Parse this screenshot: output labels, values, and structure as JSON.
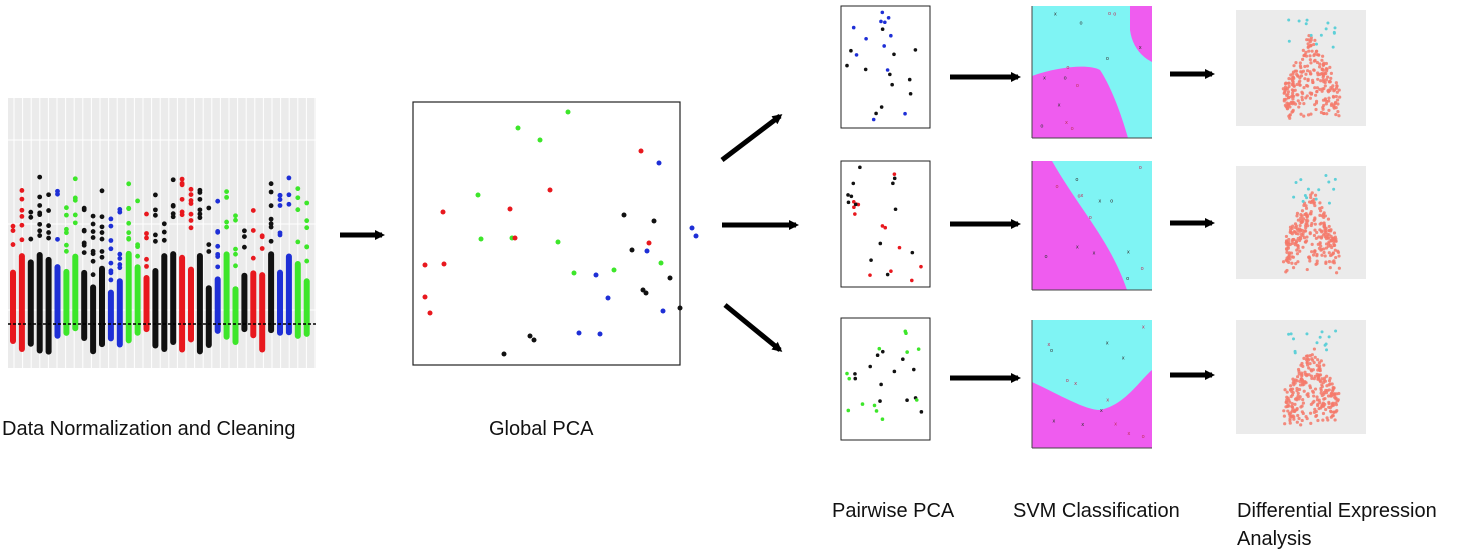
{
  "stages": {
    "normalization": {
      "label": "Data Normalization and Cleaning"
    },
    "global_pca": {
      "label": "Global PCA"
    },
    "pairwise_pca": {
      "label": "Pairwise PCA"
    },
    "svm": {
      "label": "SVM Classification"
    },
    "differential": {
      "label_line1": "Differential Expression",
      "label_line2": "Analysis"
    }
  },
  "colors": {
    "red": "#e8181e",
    "black": "#111111",
    "blue": "#1e2fd6",
    "green": "#3de62a",
    "cyan": "#7ff4f4",
    "magenta": "#ef5cef",
    "salmon": "#f4796a",
    "teal_points": "#5fd0d8",
    "ggplot_bg": "#ebebeb"
  }
}
